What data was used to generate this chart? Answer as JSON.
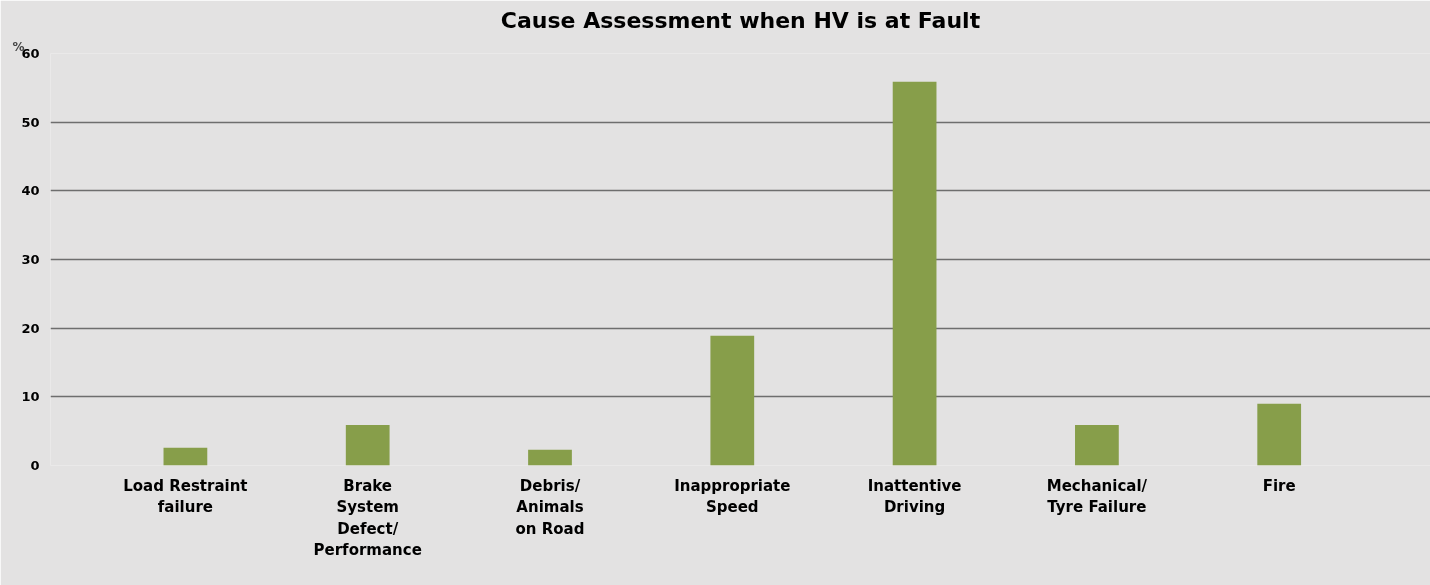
{
  "chart_data": {
    "type": "bar",
    "title": "Cause Assessment when HV is at Fault",
    "ylabel": "%",
    "categories": [
      "Load Restraint\nfailure",
      "Brake\nSystem\nDefect/\nPerformance",
      "Debris/\nAnimals\non Road",
      "Inappropriate\nSpeed",
      "Inattentive\nDriving",
      "Mechanical/\nTyre Failure",
      "Fire"
    ],
    "values": [
      2.6,
      5.9,
      2.3,
      18.9,
      55.9,
      5.9,
      9.0
    ],
    "color": "#879e4a",
    "ylim": [
      0,
      60
    ],
    "yticks": [
      0,
      10,
      20,
      30,
      40,
      50,
      60
    ],
    "grid": "y"
  }
}
